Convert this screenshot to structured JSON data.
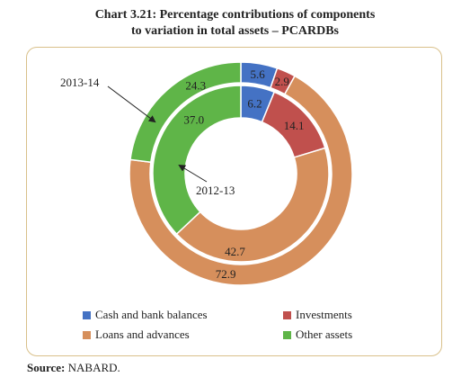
{
  "title_line1": "Chart 3.21: Percentage contributions of components",
  "title_line2": "to variation in total assets – PCARDBs",
  "chart_data": {
    "type": "pie",
    "categories": [
      "Cash and bank balances",
      "Investments",
      "Loans and advances",
      "Other assets"
    ],
    "colors": [
      "#4472c4",
      "#c0504d",
      "#d68f5c",
      "#5fb548"
    ],
    "series": [
      {
        "name": "2013-14",
        "values": [
          5.6,
          2.9,
          72.9,
          24.3
        ]
      },
      {
        "name": "2012-13",
        "values": [
          6.2,
          14.1,
          42.7,
          37.0
        ]
      }
    ],
    "legend_position": "bottom"
  },
  "labels": {
    "outer_label": "2013-14",
    "inner_label": "2012-13",
    "outer_values": [
      "5.6",
      "2.9",
      "72.9",
      "24.3"
    ],
    "inner_values": [
      "6.2",
      "14.1",
      "42.7",
      "37.0"
    ]
  },
  "legend": [
    {
      "label": "Cash and bank balances",
      "color": "#4472c4"
    },
    {
      "label": "Investments",
      "color": "#c0504d"
    },
    {
      "label": "Loans and advances",
      "color": "#d68f5c"
    },
    {
      "label": "Other assets",
      "color": "#5fb548"
    }
  ],
  "source_label": "Source:",
  "source_text": "NABARD."
}
